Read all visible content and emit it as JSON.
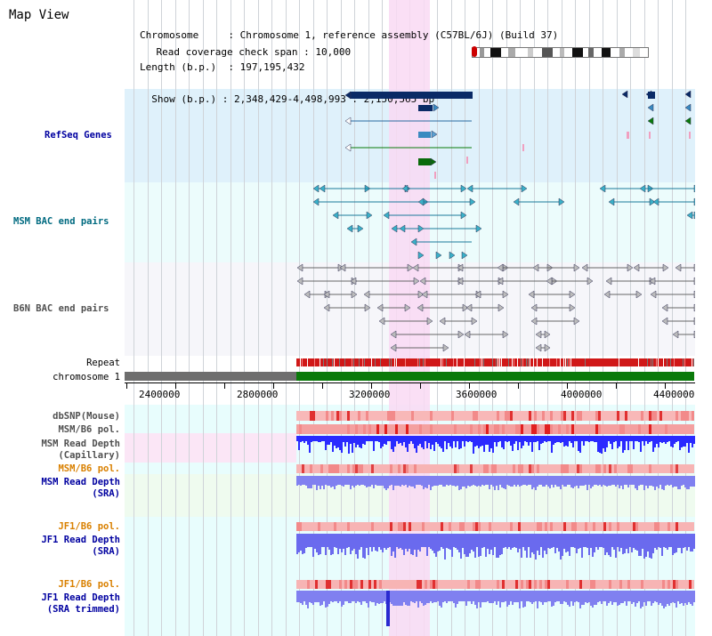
{
  "title": "Map View",
  "info": {
    "chromosome_label": "Chromosome",
    "chromosome_value": "Chromosome 1, reference assembly (C57BL/6J) (Build 37)",
    "length_label": "Length (b.p.)",
    "length_value": "197,195,432",
    "show_label": "Show (b.p.)",
    "show_value": "2,348,429-4,498,993 : 2,150,565 bp",
    "span_label": "Read coverage check span",
    "span_value": "10,000"
  },
  "tracks": {
    "refseq": "RefSeq Genes",
    "msm_bac": "MSM BAC end pairs",
    "b6n_bac": "B6N BAC end pairs",
    "repeat": "Repeat",
    "chromosome": "chromosome 1",
    "dbsnp": "dbSNP(Mouse)",
    "msm_b6_pol_1": "MSM/B6 pol.",
    "msm_depth_cap_1": "MSM Read Depth",
    "msm_depth_cap_2": "(Capillary)",
    "msm_b6_pol_2": "MSM/B6 pol.",
    "msm_depth_sra_1": "MSM Read Depth",
    "msm_depth_sra_2": "(SRA)",
    "jf1_b6_pol_1": "JF1/B6 pol.",
    "jf1_depth_sra_1": "JF1 Read Depth",
    "jf1_depth_sra_2": "(SRA)",
    "jf1_b6_pol_2": "JF1/B6 pol.",
    "jf1_depth_trim_1": "JF1 Read Depth",
    "jf1_depth_trim_2": "(SRA trimmed)"
  },
  "axis": {
    "ticks": [
      "2400000",
      "2800000",
      "3200000",
      "3600000",
      "4000000",
      "4400000"
    ]
  },
  "colors": {
    "refseq_bg": "#dff1fb",
    "msm_bg": "#ecfcfc",
    "b6n_bg": "#f6f6fa",
    "highlight": "#f9d9f3",
    "label_blue": "#0000a0",
    "label_teal": "#006a80",
    "label_gray": "#505050",
    "label_orange": "#d98000",
    "chromosome_green": "#0a7a0a",
    "chromosome_gray": "#6e6e6e",
    "depth_blue": "#2a2aff",
    "depth_sra": "#7a7aee",
    "pol_pink": "#f4a0a0",
    "refseq_dark": "#0a2a66",
    "refseq_mid": "#3a8ac0"
  }
}
